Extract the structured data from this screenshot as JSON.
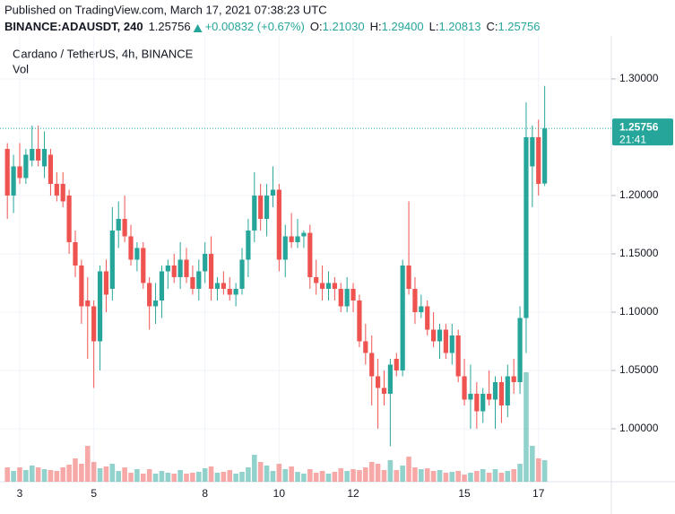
{
  "header": {
    "published": "Published on TradingView.com, March 17, 2021 07:38:23 UTC",
    "symbol": "BINANCE:ADAUSDT, 240",
    "last": "1.25756",
    "change": "+0.00832 (+0.67%)",
    "ohlc": [
      {
        "label": "O:",
        "value": "1.21030"
      },
      {
        "label": "H:",
        "value": "1.29400"
      },
      {
        "label": "L:",
        "value": "1.20813"
      },
      {
        "label": "C:",
        "value": "1.25756"
      }
    ]
  },
  "chart_data": {
    "type": "candlestick",
    "title": "Cardano / TetherUS, 4h, BINANCE",
    "volume_label": "Vol",
    "up_color": "#26a69a",
    "down_color": "#ef5350",
    "grid": true,
    "ylim": [
      0.9546,
      1.3369
    ],
    "yticks": [
      {
        "value": 1.0,
        "label": "1.00000"
      },
      {
        "value": 1.05,
        "label": "1.05000"
      },
      {
        "value": 1.1,
        "label": "1.10000"
      },
      {
        "value": 1.15,
        "label": "1.15000"
      },
      {
        "value": 1.2,
        "label": "1.20000"
      },
      {
        "value": 1.3,
        "label": "1.30000"
      }
    ],
    "price_tag": {
      "value": 1.25756,
      "label": "1.25756",
      "countdown": "21:41"
    },
    "categories": [
      null,
      null,
      "3",
      null,
      null,
      null,
      null,
      null,
      null,
      null,
      null,
      null,
      null,
      null,
      "5",
      null,
      null,
      null,
      null,
      null,
      null,
      null,
      null,
      null,
      null,
      null,
      null,
      null,
      null,
      null,
      null,
      null,
      "8",
      null,
      null,
      null,
      null,
      null,
      null,
      null,
      null,
      null,
      null,
      null,
      "10",
      null,
      null,
      null,
      null,
      null,
      null,
      null,
      null,
      null,
      null,
      null,
      "12",
      null,
      null,
      null,
      null,
      null,
      null,
      null,
      null,
      null,
      null,
      null,
      null,
      null,
      null,
      null,
      null,
      null,
      "15",
      null,
      null,
      null,
      null,
      null,
      null,
      null,
      null,
      null,
      null,
      null,
      "17",
      null
    ],
    "open": [
      1.24,
      1.2,
      1.225,
      1.215,
      1.23,
      1.24,
      1.225,
      1.235,
      1.21,
      1.21,
      1.2,
      1.16,
      1.14,
      1.11,
      1.105,
      1.075,
      1.135,
      1.12,
      1.17,
      1.18,
      1.165,
      1.145,
      1.155,
      1.125,
      1.105,
      1.11,
      1.135,
      1.14,
      1.13,
      1.145,
      1.13,
      1.12,
      1.135,
      1.15,
      1.12,
      1.125,
      1.12,
      1.115,
      1.12,
      1.145,
      1.17,
      1.2,
      1.18,
      1.2,
      1.205,
      1.145,
      1.165,
      1.16,
      1.165,
      1.168,
      1.13,
      1.125,
      1.12,
      1.125,
      1.12,
      1.105,
      1.12,
      1.11,
      1.075,
      1.065,
      1.045,
      1.035,
      1.03,
      1.06,
      1.05,
      1.14,
      1.12,
      1.1,
      1.105,
      1.085,
      1.075,
      1.085,
      1.065,
      1.08,
      1.045,
      1.025,
      1.03,
      1.015,
      1.03,
      1.025,
      1.04,
      1.02,
      1.045,
      1.04,
      1.095,
      1.225,
      1.25,
      1.2103
    ],
    "high": [
      1.245,
      1.235,
      1.245,
      1.24,
      1.26,
      1.26,
      1.255,
      1.24,
      1.22,
      1.22,
      1.205,
      1.17,
      1.145,
      1.13,
      1.11,
      1.14,
      1.145,
      1.19,
      1.195,
      1.2,
      1.175,
      1.16,
      1.16,
      1.13,
      1.125,
      1.14,
      1.145,
      1.15,
      1.16,
      1.155,
      1.14,
      1.145,
      1.16,
      1.165,
      1.13,
      1.135,
      1.13,
      1.125,
      1.155,
      1.18,
      1.22,
      1.21,
      1.21,
      1.225,
      1.21,
      1.175,
      1.185,
      1.18,
      1.17,
      1.175,
      1.145,
      1.14,
      1.135,
      1.13,
      1.125,
      1.13,
      1.125,
      1.115,
      1.09,
      1.08,
      1.06,
      1.05,
      1.06,
      1.065,
      1.145,
      1.195,
      1.13,
      1.115,
      1.11,
      1.1,
      1.09,
      1.09,
      1.09,
      1.085,
      1.06,
      1.055,
      1.04,
      1.035,
      1.05,
      1.045,
      1.045,
      1.055,
      1.06,
      1.105,
      1.28,
      1.26,
      1.265,
      1.294
    ],
    "low": [
      1.18,
      1.185,
      1.21,
      1.21,
      1.225,
      1.225,
      1.215,
      1.2,
      1.195,
      1.19,
      1.15,
      1.13,
      1.09,
      1.06,
      1.035,
      1.05,
      1.1,
      1.11,
      1.155,
      1.16,
      1.14,
      1.135,
      1.12,
      1.085,
      1.09,
      1.095,
      1.12,
      1.125,
      1.12,
      1.125,
      1.115,
      1.11,
      1.125,
      1.11,
      1.11,
      1.115,
      1.11,
      1.105,
      1.115,
      1.13,
      1.16,
      1.17,
      1.165,
      1.19,
      1.135,
      1.13,
      1.155,
      1.155,
      1.155,
      1.12,
      1.115,
      1.11,
      1.11,
      1.11,
      1.1,
      1.1,
      1.1,
      1.07,
      1.055,
      1.02,
      1.0,
      1.02,
      0.985,
      1.045,
      1.045,
      1.115,
      1.09,
      1.095,
      1.08,
      1.07,
      1.06,
      1.06,
      1.055,
      1.04,
      1.02,
      1.0,
      1.0,
      1.005,
      1.02,
      1.0,
      1.005,
      1.01,
      1.03,
      1.03,
      1.065,
      1.19,
      1.2,
      1.20813
    ],
    "close": [
      1.2,
      1.225,
      1.215,
      1.235,
      1.24,
      1.23,
      1.24,
      1.21,
      1.2,
      1.195,
      1.16,
      1.14,
      1.105,
      1.105,
      1.075,
      1.135,
      1.115,
      1.17,
      1.18,
      1.165,
      1.145,
      1.155,
      1.125,
      1.105,
      1.11,
      1.135,
      1.14,
      1.13,
      1.145,
      1.13,
      1.12,
      1.135,
      1.15,
      1.12,
      1.125,
      1.12,
      1.115,
      1.12,
      1.145,
      1.17,
      1.2,
      1.18,
      1.2,
      1.205,
      1.145,
      1.165,
      1.16,
      1.165,
      1.168,
      1.13,
      1.125,
      1.12,
      1.125,
      1.12,
      1.105,
      1.12,
      1.11,
      1.075,
      1.065,
      1.045,
      1.035,
      1.03,
      1.055,
      1.05,
      1.14,
      1.12,
      1.1,
      1.105,
      1.085,
      1.075,
      1.085,
      1.065,
      1.08,
      1.045,
      1.025,
      1.03,
      1.015,
      1.03,
      1.025,
      1.04,
      1.02,
      1.045,
      1.04,
      1.095,
      1.25,
      1.25,
      1.21,
      1.25756
    ],
    "volume": [
      16,
      12,
      16,
      13,
      18,
      16,
      14,
      13,
      12,
      16,
      19,
      26,
      20,
      40,
      22,
      15,
      17,
      20,
      12,
      16,
      10,
      14,
      9,
      14,
      9,
      12,
      10,
      9,
      13,
      9,
      10,
      11,
      15,
      17,
      10,
      11,
      13,
      9,
      11,
      16,
      30,
      22,
      18,
      12,
      20,
      14,
      17,
      11,
      9,
      14,
      10,
      12,
      9,
      11,
      15,
      12,
      14,
      13,
      16,
      22,
      20,
      13,
      24,
      13,
      18,
      28,
      16,
      14,
      15,
      12,
      13,
      10,
      11,
      12,
      8,
      10,
      12,
      14,
      10,
      14,
      10,
      12,
      14,
      20,
      122,
      40,
      26,
      24
    ]
  }
}
